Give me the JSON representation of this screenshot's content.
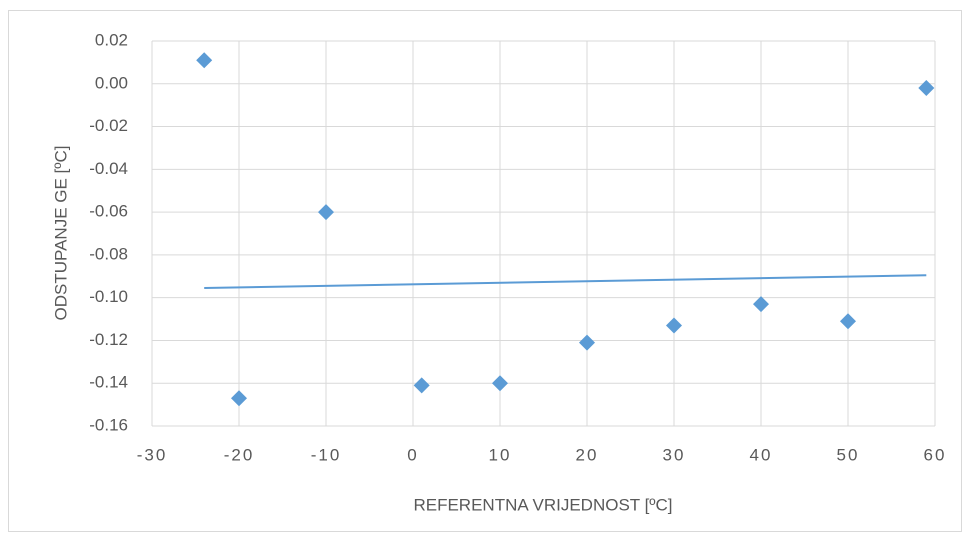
{
  "chart_data": {
    "type": "scatter",
    "xlabel": "REFERENTNA VRIJEDNOST [ºC]",
    "ylabel": "ODSTUPANJE GE [ºC]",
    "color": "#5b9bd5",
    "grid": true,
    "x": [
      -24,
      -20,
      -10,
      1,
      10,
      20,
      30,
      40,
      50,
      59
    ],
    "values": [
      0.011,
      -0.147,
      -0.06,
      -0.141,
      -0.14,
      -0.121,
      -0.113,
      -0.103,
      -0.111,
      -0.002
    ],
    "trendline": {
      "x": [
        -24,
        59
      ],
      "y": [
        -0.0955,
        -0.0895
      ]
    },
    "xlim": [
      -30,
      60
    ],
    "xticks": [
      -30,
      -20,
      -10,
      0,
      10,
      20,
      30,
      40,
      50,
      60
    ],
    "ylim": [
      -0.16,
      0.02
    ],
    "yticks": [
      {
        "value": -0.16,
        "label": "-0.16"
      },
      {
        "value": -0.14,
        "label": "-0.14"
      },
      {
        "value": -0.12,
        "label": "-0.12"
      },
      {
        "value": -0.1,
        "label": "-0.10"
      },
      {
        "value": -0.08,
        "label": "-0.08"
      },
      {
        "value": -0.06,
        "label": "-0.06"
      },
      {
        "value": -0.04,
        "label": "-0.04"
      },
      {
        "value": -0.02,
        "label": "-0.02"
      },
      {
        "value": 0,
        "label": "0.00"
      },
      {
        "value": 0.02,
        "label": "0.02"
      }
    ]
  }
}
